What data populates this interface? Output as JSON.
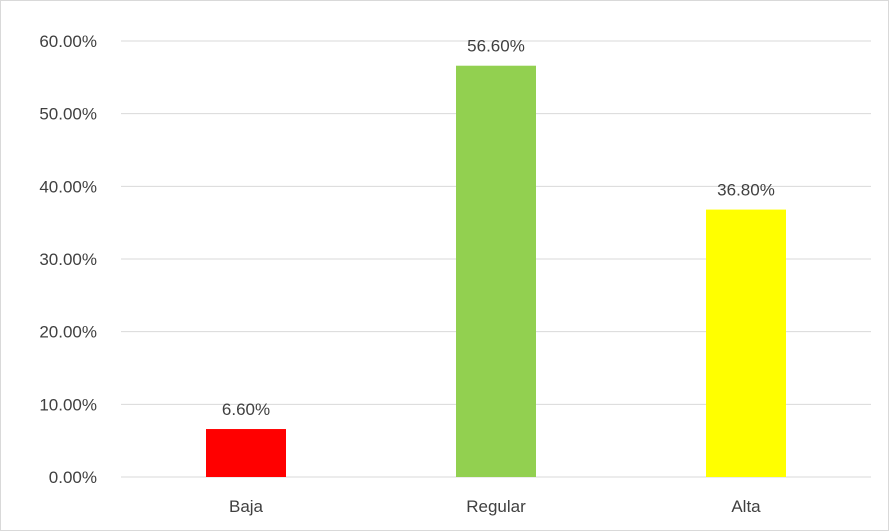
{
  "chart_data": {
    "type": "bar",
    "title": "",
    "xlabel": "",
    "ylabel": "",
    "categories": [
      "Baja",
      "Regular",
      "Alta"
    ],
    "values": [
      6.6,
      56.6,
      36.8
    ],
    "data_labels": [
      "6.60%",
      "56.60%",
      "36.80%"
    ],
    "bar_colors": [
      "#ff0000",
      "#92d050",
      "#ffff00"
    ],
    "ylim": [
      0,
      60
    ],
    "y_ticks": [
      0,
      10,
      20,
      30,
      40,
      50,
      60
    ],
    "y_tick_labels": [
      "0.00%",
      "10.00%",
      "20.00%",
      "30.00%",
      "40.00%",
      "50.00%",
      "60.00%"
    ],
    "grid": true,
    "legend": "none"
  },
  "colors": {
    "gridline": "#d9d9d9",
    "axis_line": "#d9d9d9",
    "text": "#404040"
  }
}
